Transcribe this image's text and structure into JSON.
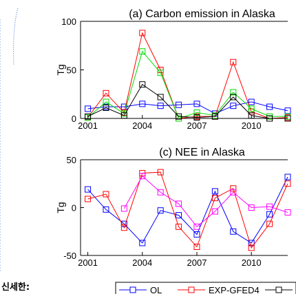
{
  "side_text": "신세한:",
  "chart_data": [
    {
      "type": "line",
      "title": "(a) Carbon emission in Alaska",
      "xlabel": "",
      "ylabel": "Tg",
      "x": [
        2001,
        2002,
        2003,
        2004,
        2005,
        2006,
        2007,
        2008,
        2009,
        2010,
        2011,
        2012
      ],
      "xlim": [
        2000.6,
        2012.0
      ],
      "ylim": [
        0,
        100
      ],
      "xticks": [
        "2001",
        "2004",
        "2007",
        "2010"
      ],
      "yticks": [
        "0",
        "50",
        "100"
      ],
      "series": [
        {
          "name": "OL",
          "color": "#0000ff",
          "values": [
            10,
            12,
            12,
            15,
            13,
            14,
            15,
            5,
            13,
            17,
            12,
            8
          ]
        },
        {
          "name": "EXP-GFED4",
          "color": "#ff0000",
          "values": [
            1,
            26,
            6,
            88,
            50,
            0,
            2,
            2,
            58,
            7,
            0,
            1
          ]
        },
        {
          "name": "",
          "color": "#00dd00",
          "values": [
            1,
            17,
            5,
            69,
            47,
            0,
            6,
            3,
            27,
            10,
            2,
            2
          ]
        },
        {
          "name": "",
          "color": "#000000",
          "values": [
            2,
            11,
            3,
            35,
            22,
            2,
            1,
            2,
            22,
            3,
            0,
            0
          ]
        }
      ]
    },
    {
      "type": "line",
      "title": "(c) NEE in Alaska",
      "xlabel": "",
      "ylabel": "Tg",
      "x": [
        2001,
        2002,
        2003,
        2004,
        2005,
        2006,
        2007,
        2008,
        2009,
        2010,
        2011,
        2012
      ],
      "xlim": [
        2000.6,
        2012.0
      ],
      "ylim": [
        -50,
        50
      ],
      "xticks": [
        "2001",
        "2004",
        "2007",
        "2010"
      ],
      "yticks": [
        "-50",
        "0",
        "50"
      ],
      "series": [
        {
          "name": "OL",
          "color": "#0000ff",
          "values": [
            19,
            -2,
            -17,
            -37,
            -3,
            -8,
            -28,
            17,
            -25,
            -37,
            -7,
            32
          ]
        },
        {
          "name": "EXP-GFED4",
          "color": "#ff0000",
          "values": [
            9,
            14,
            -21,
            36,
            37,
            -20,
            -41,
            10,
            20,
            -42,
            -17,
            25
          ]
        },
        {
          "name": "",
          "color": "#ff00ff",
          "values": [
            null,
            null,
            -1,
            33,
            16,
            4,
            -20,
            -4,
            16,
            0,
            1,
            -5
          ]
        }
      ]
    }
  ],
  "legend": {
    "placement": "bottom-right",
    "items": [
      {
        "label": "OL",
        "color": "#0000ff"
      },
      {
        "label": "EXP-GFED4",
        "color": "#ff0000"
      },
      {
        "label": "",
        "color": "#000000"
      }
    ]
  }
}
